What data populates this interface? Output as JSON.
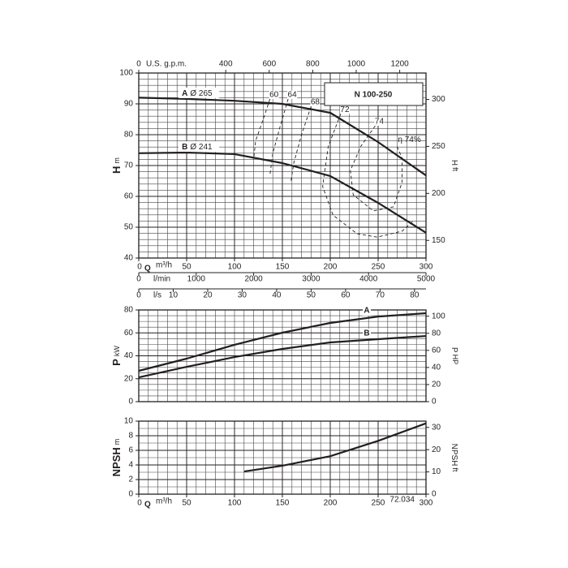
{
  "chart_data": [
    {
      "type": "line",
      "title": "N 100-250",
      "y_label": "H",
      "y_unit": "m",
      "y2_label": "H",
      "y2_unit": "ft",
      "x_label": "Q",
      "x_unit": "m³/h",
      "xlim": [
        0,
        300
      ],
      "xticks": [
        0,
        50,
        100,
        150,
        200,
        250,
        300
      ],
      "ylim": [
        40,
        100
      ],
      "yticks": [
        40,
        50,
        60,
        70,
        80,
        90,
        100
      ],
      "y2lim": [
        131.2,
        328.1
      ],
      "y2ticks": [
        150,
        200,
        250,
        300
      ],
      "grid": true,
      "minor_grid": {
        "x": 10,
        "y": 2
      },
      "x_axes": [
        {
          "name": "U.S. g.p.m.",
          "position": "top",
          "xlim": [
            0,
            1320.9
          ],
          "xticks": [
            0,
            400,
            600,
            800,
            1000,
            1200
          ]
        },
        {
          "name": "l/min",
          "position": "bottom",
          "xlim": [
            0,
            5000
          ],
          "xticks": [
            0,
            1000,
            2000,
            3000,
            4000,
            5000
          ]
        },
        {
          "name": "l/s",
          "position": "bottom",
          "xlim": [
            0,
            83.33
          ],
          "xticks": [
            0,
            10,
            20,
            30,
            40,
            50,
            60,
            70,
            80
          ]
        }
      ],
      "series": [
        {
          "name": "A",
          "label": "Ø 265",
          "color": "#231f20",
          "x": [
            0,
            50,
            100,
            150,
            200,
            250,
            300
          ],
          "values": [
            92,
            91.6,
            91,
            90,
            87.1,
            77.6,
            66.8
          ]
        },
        {
          "name": "B",
          "label": "Ø 241",
          "color": "#231f20",
          "x": [
            0,
            50,
            100,
            150,
            200,
            250,
            300
          ],
          "values": [
            74,
            74.2,
            73.7,
            70.8,
            66.6,
            57.9,
            48.2
          ]
        }
      ],
      "efficiency_curves": [
        {
          "name": "60",
          "style": "dashed",
          "color": "#231f20",
          "x": [
            137,
            130,
            122,
            120
          ],
          "values": [
            91.6,
            85,
            78,
            72
          ]
        },
        {
          "name": "64",
          "style": "dashed",
          "color": "#231f20",
          "x": [
            156,
            148,
            140,
            137
          ],
          "values": [
            91.6,
            83,
            74,
            67
          ]
        },
        {
          "name": "68",
          "style": "dashed",
          "color": "#231f20",
          "x": [
            180,
            170,
            162,
            159
          ],
          "values": [
            89.2,
            80,
            71,
            65
          ]
        },
        {
          "name": "72",
          "style": "dashed",
          "color": "#231f20",
          "x": [
            211,
            198,
            192,
            203,
            228,
            249,
            275,
            287
          ],
          "values": [
            86.8,
            76.3,
            63.2,
            53.9,
            47.9,
            46.8,
            48.7,
            52.1
          ]
        },
        {
          "name": "74",
          "style": "dashed",
          "color": "#231f20",
          "x": [
            247,
            232,
            221,
            224,
            245,
            266,
            275,
            275,
            269
          ],
          "values": [
            82.9,
            76.3,
            68.4,
            60.5,
            55.3,
            56.6,
            64.5,
            72.4,
            76.8
          ]
        }
      ],
      "efficiency_label": "η 74%"
    },
    {
      "type": "line",
      "y_label": "P",
      "y_unit": "kW",
      "y2_label": "P",
      "y2_unit": "HP",
      "xlim": [
        0,
        300
      ],
      "ylim": [
        0,
        80
      ],
      "yticks": [
        0,
        20,
        40,
        60,
        80
      ],
      "y2lim": [
        0,
        107.28
      ],
      "y2ticks": [
        0,
        20,
        40,
        60,
        80,
        100
      ],
      "grid": true,
      "minor_grid": {
        "x": 10,
        "y": 5
      },
      "series": [
        {
          "name": "A",
          "color": "#231f20",
          "x": [
            0,
            50,
            100,
            150,
            200,
            250,
            300
          ],
          "values": [
            26.9,
            37.5,
            49.6,
            60.2,
            68.7,
            74.3,
            77.2
          ]
        },
        {
          "name": "B",
          "color": "#231f20",
          "x": [
            0,
            50,
            100,
            150,
            200,
            250,
            300
          ],
          "values": [
            21.2,
            30.4,
            38.9,
            46,
            51.7,
            54.5,
            57.3
          ]
        }
      ]
    },
    {
      "type": "line",
      "y_label": "NPSH",
      "y_unit": "m",
      "y2_label": "NPSH",
      "y2_unit": "ft",
      "x_label": "Q",
      "x_unit": "m³/h",
      "xlim": [
        0,
        300
      ],
      "xticks": [
        0,
        50,
        100,
        150,
        200,
        250,
        300
      ],
      "ylim": [
        0,
        10
      ],
      "yticks": [
        0,
        2,
        4,
        6,
        8,
        10
      ],
      "y2lim": [
        0,
        32.81
      ],
      "y2ticks": [
        0,
        10,
        20,
        30
      ],
      "grid": true,
      "minor_grid": {
        "x": 10,
        "y": 1
      },
      "series": [
        {
          "color": "#231f20",
          "x": [
            110,
            150,
            200,
            250,
            300
          ],
          "values": [
            3.1,
            3.9,
            5.2,
            7.3,
            9.7
          ]
        }
      ],
      "code": "72.034"
    }
  ]
}
